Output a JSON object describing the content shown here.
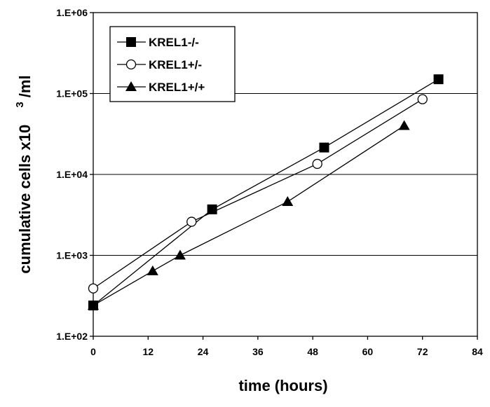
{
  "chart_data": {
    "type": "line",
    "xlabel": "time (hours)",
    "ylabel_main": "cumulative cells x10",
    "ylabel_sup": "3",
    "ylabel_unit": "/ml",
    "x_ticks": [
      "0",
      "12",
      "24",
      "36",
      "48",
      "60",
      "72",
      "84"
    ],
    "xlim": [
      0,
      84
    ],
    "y_scale": "log",
    "ylim": [
      100,
      1000000
    ],
    "y_ticks": [
      "1.E+02",
      "1.E+03",
      "1.E+04",
      "1.E+05",
      "1.E+06"
    ],
    "grid": "horizontal",
    "legend_position": "top-left",
    "series": [
      {
        "name": "KREL1-/-",
        "marker": "filled-square",
        "points": [
          [
            0,
            240
          ],
          [
            26,
            3700
          ],
          [
            50.5,
            21500
          ],
          [
            75.5,
            150000
          ]
        ]
      },
      {
        "name": "KREL1+/-",
        "marker": "open-circle",
        "points": [
          [
            0,
            390
          ],
          [
            21.5,
            2600
          ],
          [
            49,
            13500
          ],
          [
            72,
            85000
          ]
        ]
      },
      {
        "name": "KREL1+/+",
        "marker": "filled-triangle",
        "points": [
          [
            0,
            240
          ],
          [
            13,
            640
          ],
          [
            19,
            1000
          ],
          [
            42.5,
            4600
          ],
          [
            68,
            40000
          ]
        ]
      }
    ]
  }
}
